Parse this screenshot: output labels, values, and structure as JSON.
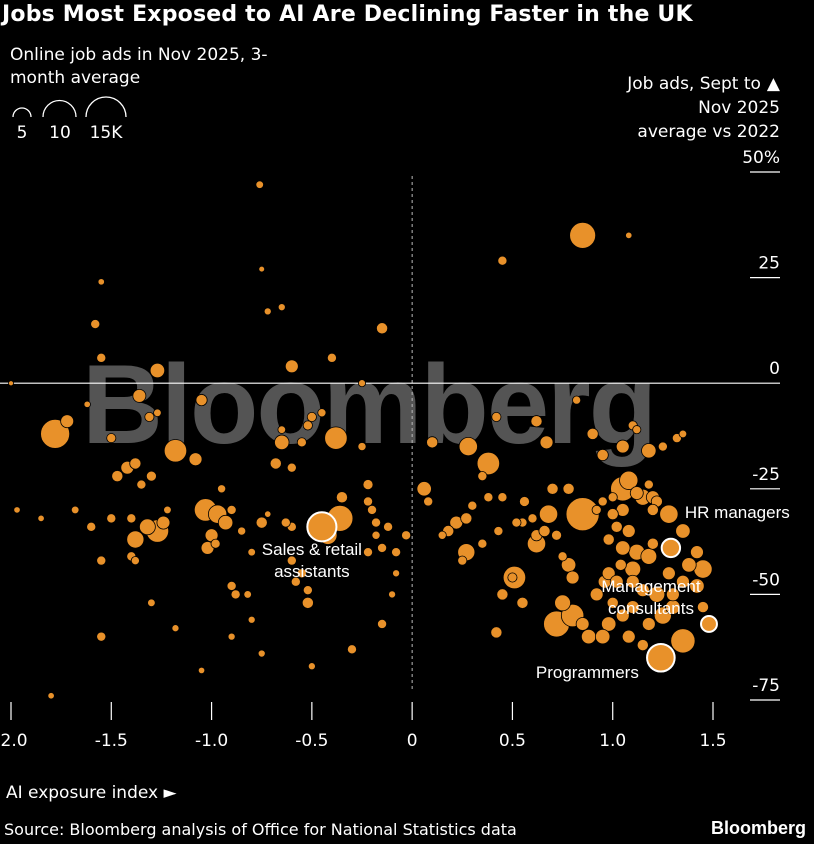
{
  "title": "Jobs Most Exposed to AI Are Declining Faster in the UK",
  "subtitle_lines": [
    "Online job ads in Nov 2025, 3-",
    "month average"
  ],
  "size_legend": [
    {
      "label": "5",
      "value": 5
    },
    {
      "label": "10",
      "value": 10
    },
    {
      "label": "15K",
      "value": 15
    }
  ],
  "y_title_lines": [
    "Job ads, Sept to",
    "Nov 2025",
    "average vs 2022"
  ],
  "x_title": "AI exposure index",
  "source": "Source: Bloomberg analysis of Office for National Statistics data",
  "brand": "Bloomberg",
  "watermark": "Bloomberg",
  "colors": {
    "background": "#000000",
    "bubble": "#e8912a",
    "bubble_stroke": "#000000",
    "highlight_stroke": "#ffffff",
    "zero_line": "#ffffff"
  },
  "chart_data": {
    "type": "scatter",
    "title": "Jobs Most Exposed to AI Are Declining Faster in the UK",
    "xlabel": "AI exposure index",
    "ylabel": "Job ads, Sept to Nov 2025 average vs 2022",
    "xlim": [
      -2.0,
      1.5
    ],
    "ylim": [
      -75,
      50
    ],
    "x_ticks": [
      -2.0,
      -1.5,
      -1.0,
      -0.5,
      0,
      0.5,
      1.0,
      1.5
    ],
    "x_tick_labels": [
      "-2.0",
      "-1.5",
      "-1.0",
      "-0.5",
      "0",
      "0.5",
      "1.0",
      "1.5"
    ],
    "y_ticks": [
      50,
      25,
      0,
      -25,
      -50,
      -75
    ],
    "y_tick_labels": [
      "50%",
      "25",
      "0",
      "-25",
      "-50",
      "-75"
    ],
    "size_encoding": "Online job ads in Nov 2025, 3-month average (thousands)",
    "highlighted": [
      {
        "label": [
          "Sales & retail",
          "assistants"
        ],
        "x": -0.45,
        "y": -34,
        "size": 10
      },
      {
        "label": [
          "HR managers"
        ],
        "x": 1.29,
        "y": -39,
        "size": 4
      },
      {
        "label": [
          "Management",
          "consultants"
        ],
        "x": 1.48,
        "y": -57,
        "size": 3
      },
      {
        "label": [
          "Programmers"
        ],
        "x": 1.24,
        "y": -65,
        "size": 9
      }
    ],
    "points": [
      {
        "x": -2.0,
        "y": 0,
        "size": 0.3
      },
      {
        "x": -1.55,
        "y": 24,
        "size": 0.5
      },
      {
        "x": -1.78,
        "y": -12,
        "size": 10
      },
      {
        "x": -1.72,
        "y": -9,
        "size": 2
      },
      {
        "x": -1.62,
        "y": -5,
        "size": 0.5
      },
      {
        "x": -1.58,
        "y": 14,
        "size": 1
      },
      {
        "x": -1.55,
        "y": 6,
        "size": 1
      },
      {
        "x": -1.5,
        "y": -13,
        "size": 1
      },
      {
        "x": -1.47,
        "y": -22,
        "size": 1.5
      },
      {
        "x": -1.42,
        "y": -20,
        "size": 2
      },
      {
        "x": -1.38,
        "y": -19,
        "size": 1.5
      },
      {
        "x": -1.35,
        "y": -24,
        "size": 1
      },
      {
        "x": -1.3,
        "y": -22,
        "size": 1.2
      },
      {
        "x": -1.36,
        "y": -3,
        "size": 2
      },
      {
        "x": -1.27,
        "y": 3,
        "size": 2.5
      },
      {
        "x": -1.31,
        "y": -8,
        "size": 1
      },
      {
        "x": -1.27,
        "y": -7,
        "size": 0.7
      },
      {
        "x": -1.38,
        "y": -37,
        "size": 3.5
      },
      {
        "x": -1.32,
        "y": -34,
        "size": 3
      },
      {
        "x": -1.27,
        "y": -35,
        "size": 6
      },
      {
        "x": -1.24,
        "y": -33,
        "size": 2
      },
      {
        "x": -1.4,
        "y": -32,
        "size": 1
      },
      {
        "x": -1.5,
        "y": -32,
        "size": 1
      },
      {
        "x": -1.6,
        "y": -34,
        "size": 1
      },
      {
        "x": -1.68,
        "y": -30,
        "size": 0.7
      },
      {
        "x": -1.85,
        "y": -32,
        "size": 0.5
      },
      {
        "x": -1.97,
        "y": -30,
        "size": 0.5
      },
      {
        "x": -1.55,
        "y": -42,
        "size": 1
      },
      {
        "x": -1.4,
        "y": -41,
        "size": 1
      },
      {
        "x": -1.38,
        "y": -42,
        "size": 0.8
      },
      {
        "x": -1.22,
        "y": -30,
        "size": 0.7
      },
      {
        "x": -1.3,
        "y": -52,
        "size": 0.7
      },
      {
        "x": -1.55,
        "y": -60,
        "size": 1
      },
      {
        "x": -1.8,
        "y": -74,
        "size": 0.5
      },
      {
        "x": -1.18,
        "y": -16,
        "size": 6
      },
      {
        "x": -1.08,
        "y": -18,
        "size": 2
      },
      {
        "x": -1.05,
        "y": -4,
        "size": 1.5
      },
      {
        "x": -1.03,
        "y": -30,
        "size": 6
      },
      {
        "x": -0.97,
        "y": -31,
        "size": 4
      },
      {
        "x": -0.93,
        "y": -33,
        "size": 2.5
      },
      {
        "x": -0.9,
        "y": -30,
        "size": 1
      },
      {
        "x": -1.0,
        "y": -36,
        "size": 2
      },
      {
        "x": -1.02,
        "y": -39,
        "size": 2
      },
      {
        "x": -0.98,
        "y": -38,
        "size": 1
      },
      {
        "x": -0.9,
        "y": -48,
        "size": 1
      },
      {
        "x": -0.88,
        "y": -50,
        "size": 1
      },
      {
        "x": -0.82,
        "y": -50,
        "size": 0.7
      },
      {
        "x": -0.85,
        "y": -35,
        "size": 0.8
      },
      {
        "x": -0.75,
        "y": -33,
        "size": 1.5
      },
      {
        "x": -0.76,
        "y": 47,
        "size": 0.7
      },
      {
        "x": -0.75,
        "y": 27,
        "size": 0.4
      },
      {
        "x": -0.72,
        "y": 17,
        "size": 0.6
      },
      {
        "x": -0.65,
        "y": 18,
        "size": 0.6
      },
      {
        "x": -0.6,
        "y": 4,
        "size": 2
      },
      {
        "x": -0.65,
        "y": -14,
        "size": 2.5
      },
      {
        "x": -0.68,
        "y": -19,
        "size": 1.5
      },
      {
        "x": -0.6,
        "y": -20,
        "size": 1
      },
      {
        "x": -0.55,
        "y": -14,
        "size": 1
      },
      {
        "x": -0.65,
        "y": -11,
        "size": 0.7
      },
      {
        "x": -0.52,
        "y": -10,
        "size": 1
      },
      {
        "x": -0.5,
        "y": -8,
        "size": 1
      },
      {
        "x": -0.45,
        "y": -7,
        "size": 0.8
      },
      {
        "x": -0.38,
        "y": -13,
        "size": 6
      },
      {
        "x": -0.4,
        "y": 6,
        "size": 1
      },
      {
        "x": -0.35,
        "y": -27,
        "size": 1.5
      },
      {
        "x": -0.36,
        "y": -32,
        "size": 8
      },
      {
        "x": -0.42,
        "y": -36,
        "size": 4
      },
      {
        "x": -0.5,
        "y": -33,
        "size": 1.2
      },
      {
        "x": -0.6,
        "y": -34,
        "size": 1
      },
      {
        "x": -0.63,
        "y": -33,
        "size": 1
      },
      {
        "x": -0.6,
        "y": -42,
        "size": 1
      },
      {
        "x": -0.55,
        "y": -45,
        "size": 1
      },
      {
        "x": -0.58,
        "y": -47,
        "size": 1
      },
      {
        "x": -0.52,
        "y": -49,
        "size": 1
      },
      {
        "x": -0.52,
        "y": -52,
        "size": 1.5
      },
      {
        "x": -0.22,
        "y": -24,
        "size": 1.2
      },
      {
        "x": -0.22,
        "y": -28,
        "size": 1
      },
      {
        "x": -0.2,
        "y": -30,
        "size": 1
      },
      {
        "x": -0.18,
        "y": -33,
        "size": 1
      },
      {
        "x": -0.12,
        "y": -34,
        "size": 1
      },
      {
        "x": -0.18,
        "y": -36,
        "size": 0.8
      },
      {
        "x": -0.15,
        "y": -39,
        "size": 1
      },
      {
        "x": -0.22,
        "y": -40,
        "size": 1
      },
      {
        "x": -0.03,
        "y": -36,
        "size": 1
      },
      {
        "x": -0.25,
        "y": -15,
        "size": 0.8
      },
      {
        "x": -0.15,
        "y": 13,
        "size": 1.5
      },
      {
        "x": -0.25,
        "y": 0,
        "size": 0.6
      },
      {
        "x": -0.08,
        "y": -40,
        "size": 1
      },
      {
        "x": -0.08,
        "y": -45,
        "size": 0.6
      },
      {
        "x": -0.1,
        "y": -50,
        "size": 0.6
      },
      {
        "x": -0.15,
        "y": -57,
        "size": 1
      },
      {
        "x": -0.3,
        "y": -63,
        "size": 1
      },
      {
        "x": -0.5,
        "y": -67,
        "size": 0.6
      },
      {
        "x": -0.75,
        "y": -64,
        "size": 0.6
      },
      {
        "x": -0.9,
        "y": -60,
        "size": 0.6
      },
      {
        "x": -1.18,
        "y": -58,
        "size": 0.6
      },
      {
        "x": -1.05,
        "y": -68,
        "size": 0.5
      },
      {
        "x": -0.8,
        "y": -56,
        "size": 0.6
      },
      {
        "x": -0.72,
        "y": -31,
        "size": 0.5
      },
      {
        "x": -0.8,
        "y": -40,
        "size": 0.7
      },
      {
        "x": -0.95,
        "y": -25,
        "size": 0.8
      },
      {
        "x": 0.06,
        "y": -25,
        "size": 2.5
      },
      {
        "x": 0.08,
        "y": -28,
        "size": 1
      },
      {
        "x": 0.1,
        "y": -14,
        "size": 1.5
      },
      {
        "x": 0.22,
        "y": -33,
        "size": 2
      },
      {
        "x": 0.18,
        "y": -35,
        "size": 1.5
      },
      {
        "x": 0.27,
        "y": -32,
        "size": 1.5
      },
      {
        "x": 0.3,
        "y": -29,
        "size": 1
      },
      {
        "x": 0.35,
        "y": -22,
        "size": 1
      },
      {
        "x": 0.38,
        "y": -27,
        "size": 1
      },
      {
        "x": 0.28,
        "y": -15,
        "size": 4
      },
      {
        "x": 0.38,
        "y": -19,
        "size": 6
      },
      {
        "x": 0.42,
        "y": -8,
        "size": 1
      },
      {
        "x": 0.27,
        "y": -40,
        "size": 3.5
      },
      {
        "x": 0.25,
        "y": -42,
        "size": 1
      },
      {
        "x": 0.15,
        "y": -36,
        "size": 0.8
      },
      {
        "x": 0.35,
        "y": -38,
        "size": 1
      },
      {
        "x": 0.45,
        "y": -50,
        "size": 1.5
      },
      {
        "x": 0.5,
        "y": -46,
        "size": 1
      },
      {
        "x": 0.51,
        "y": -46,
        "size": 6
      },
      {
        "x": 0.55,
        "y": -52,
        "size": 1.5
      },
      {
        "x": 0.42,
        "y": -59,
        "size": 1.5
      },
      {
        "x": 0.43,
        "y": -35,
        "size": 1
      },
      {
        "x": 0.56,
        "y": -28,
        "size": 1.2
      },
      {
        "x": 0.55,
        "y": -33,
        "size": 1
      },
      {
        "x": 0.6,
        "y": -32,
        "size": 1
      },
      {
        "x": 0.62,
        "y": -36,
        "size": 1.5
      },
      {
        "x": 0.66,
        "y": -35,
        "size": 1.5
      },
      {
        "x": 0.68,
        "y": -31,
        "size": 4
      },
      {
        "x": 0.62,
        "y": -38,
        "size": 4
      },
      {
        "x": 0.72,
        "y": -36,
        "size": 1.2
      },
      {
        "x": 0.75,
        "y": -41,
        "size": 1
      },
      {
        "x": 0.78,
        "y": -43,
        "size": 2.5
      },
      {
        "x": 0.8,
        "y": -46,
        "size": 2
      },
      {
        "x": 0.75,
        "y": -52,
        "size": 3
      },
      {
        "x": 0.8,
        "y": -55,
        "size": 6
      },
      {
        "x": 0.72,
        "y": -57,
        "size": 8
      },
      {
        "x": 0.85,
        "y": -57,
        "size": 2
      },
      {
        "x": 0.88,
        "y": -60,
        "size": 2.5
      },
      {
        "x": 0.92,
        "y": -50,
        "size": 2
      },
      {
        "x": 0.96,
        "y": -47,
        "size": 2
      },
      {
        "x": 0.85,
        "y": -31,
        "size": 13
      },
      {
        "x": 0.78,
        "y": -25,
        "size": 1.5
      },
      {
        "x": 0.7,
        "y": -25,
        "size": 1.5
      },
      {
        "x": 0.62,
        "y": -9,
        "size": 1.5
      },
      {
        "x": 0.45,
        "y": 29,
        "size": 1
      },
      {
        "x": 0.85,
        "y": 35,
        "size": 8
      },
      {
        "x": 1.08,
        "y": 35,
        "size": 0.5
      },
      {
        "x": 0.67,
        "y": -14,
        "size": 2
      },
      {
        "x": 0.82,
        "y": -4,
        "size": 0.8
      },
      {
        "x": 0.9,
        "y": -12,
        "size": 1.5
      },
      {
        "x": 0.95,
        "y": -17,
        "size": 1.5
      },
      {
        "x": 1.05,
        "y": -15,
        "size": 2
      },
      {
        "x": 1.1,
        "y": -10,
        "size": 1
      },
      {
        "x": 1.12,
        "y": -11,
        "size": 0.8
      },
      {
        "x": 1.18,
        "y": -16,
        "size": 2.5
      },
      {
        "x": 1.25,
        "y": -15,
        "size": 1
      },
      {
        "x": 1.32,
        "y": -13,
        "size": 1
      },
      {
        "x": 1.35,
        "y": -12,
        "size": 0.7
      },
      {
        "x": 1.08,
        "y": -23,
        "size": 4
      },
      {
        "x": 1.05,
        "y": -25,
        "size": 7
      },
      {
        "x": 1.12,
        "y": -26,
        "size": 2
      },
      {
        "x": 1.18,
        "y": -24,
        "size": 1
      },
      {
        "x": 1.15,
        "y": -27,
        "size": 3
      },
      {
        "x": 1.0,
        "y": -27,
        "size": 1
      },
      {
        "x": 0.95,
        "y": -28,
        "size": 1
      },
      {
        "x": 0.92,
        "y": -30,
        "size": 1
      },
      {
        "x": 1.0,
        "y": -31,
        "size": 1.5
      },
      {
        "x": 1.05,
        "y": -30,
        "size": 2
      },
      {
        "x": 1.2,
        "y": -27,
        "size": 2
      },
      {
        "x": 1.22,
        "y": -28,
        "size": 1.5
      },
      {
        "x": 1.2,
        "y": -30,
        "size": 1.5
      },
      {
        "x": 1.28,
        "y": -31,
        "size": 4
      },
      {
        "x": 1.35,
        "y": -35,
        "size": 2.5
      },
      {
        "x": 1.42,
        "y": -40,
        "size": 2
      },
      {
        "x": 1.38,
        "y": -43,
        "size": 2.5
      },
      {
        "x": 1.45,
        "y": -44,
        "size": 4
      },
      {
        "x": 1.42,
        "y": -48,
        "size": 2.5
      },
      {
        "x": 1.08,
        "y": -35,
        "size": 2
      },
      {
        "x": 1.02,
        "y": -34,
        "size": 1.5
      },
      {
        "x": 0.98,
        "y": -37,
        "size": 1.5
      },
      {
        "x": 1.05,
        "y": -39,
        "size": 2.5
      },
      {
        "x": 1.12,
        "y": -40,
        "size": 3
      },
      {
        "x": 1.2,
        "y": -38,
        "size": 1.5
      },
      {
        "x": 1.18,
        "y": -41,
        "size": 3
      },
      {
        "x": 1.1,
        "y": -44,
        "size": 3
      },
      {
        "x": 1.04,
        "y": -43,
        "size": 1.5
      },
      {
        "x": 0.98,
        "y": -45,
        "size": 2
      },
      {
        "x": 1.02,
        "y": -47,
        "size": 2
      },
      {
        "x": 1.1,
        "y": -47,
        "size": 2
      },
      {
        "x": 1.15,
        "y": -49,
        "size": 2
      },
      {
        "x": 1.22,
        "y": -50,
        "size": 3
      },
      {
        "x": 1.3,
        "y": -50,
        "size": 2
      },
      {
        "x": 1.35,
        "y": -47,
        "size": 2
      },
      {
        "x": 1.28,
        "y": -45,
        "size": 2
      },
      {
        "x": 1.3,
        "y": -53,
        "size": 2.5
      },
      {
        "x": 1.25,
        "y": -55,
        "size": 3.5
      },
      {
        "x": 1.18,
        "y": -57,
        "size": 2
      },
      {
        "x": 1.1,
        "y": -53,
        "size": 2
      },
      {
        "x": 1.05,
        "y": -55,
        "size": 2
      },
      {
        "x": 0.98,
        "y": -57,
        "size": 2.5
      },
      {
        "x": 0.95,
        "y": -60,
        "size": 2.5
      },
      {
        "x": 1.08,
        "y": -60,
        "size": 2
      },
      {
        "x": 1.15,
        "y": -62,
        "size": 1.5
      },
      {
        "x": 1.35,
        "y": -61,
        "size": 7
      },
      {
        "x": 1.45,
        "y": -53,
        "size": 1.5
      },
      {
        "x": 1.0,
        "y": -52,
        "size": 1.5
      },
      {
        "x": 0.45,
        "y": -27,
        "size": 1
      },
      {
        "x": 0.52,
        "y": -33,
        "size": 1
      }
    ]
  }
}
